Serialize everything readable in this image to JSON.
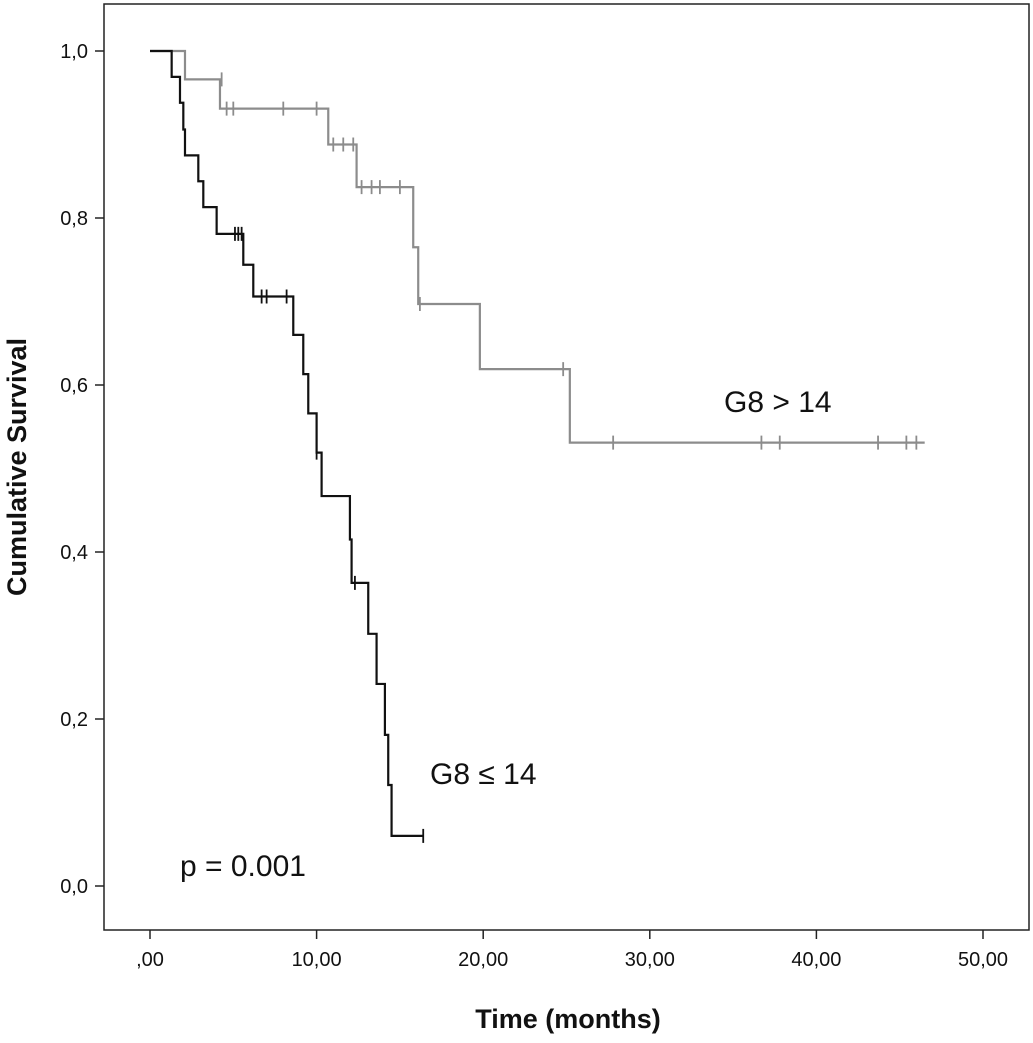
{
  "chart_data": {
    "type": "line",
    "subtype": "kaplan-meier step",
    "title": "",
    "xlabel": "Time (months)",
    "ylabel": "Cumulative Survival",
    "xlim": [
      0,
      50
    ],
    "ylim": [
      0,
      1
    ],
    "x_ticks": [
      0,
      10,
      20,
      30,
      40,
      50
    ],
    "x_tick_labels": [
      ",00",
      "10,00",
      "20,00",
      "30,00",
      "40,00",
      "50,00"
    ],
    "y_ticks": [
      0,
      0.2,
      0.4,
      0.6,
      0.8,
      1.0
    ],
    "y_tick_labels": [
      "0,0",
      "0,2",
      "0,4",
      "0,6",
      "0,8",
      "1,0"
    ],
    "grid": false,
    "legend": "none",
    "series": [
      {
        "name": "G8 > 14",
        "color": "#8c8c8c",
        "steps": [
          [
            0,
            1.0
          ],
          [
            2.1,
            0.966
          ],
          [
            4.2,
            0.931
          ],
          [
            10.7,
            0.888
          ],
          [
            12.4,
            0.837
          ],
          [
            15.8,
            0.765
          ],
          [
            16.1,
            0.697
          ],
          [
            19.8,
            0.619
          ],
          [
            25.2,
            0.531
          ],
          [
            46.5,
            0.531
          ]
        ],
        "censored": [
          [
            4.3,
            0.966
          ],
          [
            4.6,
            0.931
          ],
          [
            5.0,
            0.931
          ],
          [
            8.0,
            0.931
          ],
          [
            10.0,
            0.931
          ],
          [
            11.0,
            0.888
          ],
          [
            11.6,
            0.888
          ],
          [
            12.2,
            0.888
          ],
          [
            12.7,
            0.837
          ],
          [
            13.3,
            0.837
          ],
          [
            13.8,
            0.837
          ],
          [
            15.0,
            0.837
          ],
          [
            16.2,
            0.697
          ],
          [
            24.8,
            0.619
          ],
          [
            27.8,
            0.531
          ],
          [
            36.7,
            0.531
          ],
          [
            37.8,
            0.531
          ],
          [
            43.7,
            0.531
          ],
          [
            45.4,
            0.531
          ],
          [
            46.0,
            0.531
          ]
        ]
      },
      {
        "name": "G8 ≤ 14",
        "color": "#111111",
        "steps": [
          [
            0,
            1.0
          ],
          [
            1.3,
            0.969
          ],
          [
            1.8,
            0.938
          ],
          [
            2.0,
            0.906
          ],
          [
            2.1,
            0.875
          ],
          [
            2.9,
            0.844
          ],
          [
            3.2,
            0.813
          ],
          [
            4.0,
            0.781
          ],
          [
            5.6,
            0.744
          ],
          [
            6.2,
            0.706
          ],
          [
            8.6,
            0.66
          ],
          [
            9.2,
            0.613
          ],
          [
            9.5,
            0.566
          ],
          [
            10.0,
            0.519
          ],
          [
            10.3,
            0.467
          ],
          [
            12.0,
            0.415
          ],
          [
            12.1,
            0.363
          ],
          [
            13.1,
            0.302
          ],
          [
            13.6,
            0.242
          ],
          [
            14.1,
            0.181
          ],
          [
            14.3,
            0.121
          ],
          [
            14.5,
            0.06
          ],
          [
            16.4,
            0.06
          ]
        ],
        "censored": [
          [
            5.1,
            0.781
          ],
          [
            5.3,
            0.781
          ],
          [
            5.5,
            0.781
          ],
          [
            6.7,
            0.706
          ],
          [
            7.0,
            0.706
          ],
          [
            8.2,
            0.706
          ],
          [
            10.0,
            0.519
          ],
          [
            12.3,
            0.363
          ],
          [
            16.4,
            0.06
          ]
        ]
      }
    ],
    "annotations": [
      "G8 > 14",
      "G8 ≤ 14",
      "p = 0.001"
    ]
  }
}
